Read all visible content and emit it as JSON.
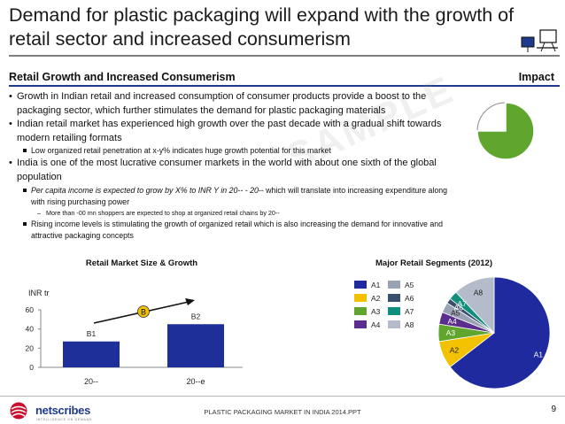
{
  "title": "Demand for plastic packaging will expand with the growth of retail sector and increased consumerism",
  "section": {
    "heading": "Retail Growth and Increased Consumerism",
    "impact_label": "Impact"
  },
  "impact_fraction": 0.75,
  "bullets": {
    "p1": "Growth in Indian retail and increased consumption of consumer products provide a boost to the packaging sector, which further stimulates the demand for plastic packaging materials",
    "p2": "Indian retail market has experienced high growth over the past decade with a gradual shift towards modern retailing formats",
    "p2_s1": "Low organized retail penetration at x-y% indicates huge growth potential for this market",
    "p3": "India is one of the most lucrative consumer markets in the world with about one sixth of the global population",
    "p3_s1_italic": "Per capita income is expected to grow by X% to INR Y in 20-- - 20--",
    "p3_s1_rest": " which will translate into increasing expenditure along with rising purchasing power",
    "p3_s1_sub": "More than -00 mn shoppers are expected to shop at organized retail chains by 20--",
    "p3_s2": "Rising income levels is stimulating the growth of organized retail which is also increasing the demand for innovative and attractive packaging concepts"
  },
  "watermark": "SAMPLE",
  "chart_data": [
    {
      "type": "bar",
      "title": "Retail Market Size & Growth",
      "ylabel": "INR tr",
      "categories": [
        "20--",
        "20--e"
      ],
      "series": [
        {
          "name": "Retail Market Size",
          "values": [
            27,
            45
          ]
        }
      ],
      "data_labels": [
        "B1",
        "B2"
      ],
      "growth_label": "B",
      "ylim": [
        0,
        60
      ],
      "yticks": [
        "0",
        "20",
        "40",
        "60"
      ],
      "grid": false,
      "bar_color": "#1f2f9a"
    },
    {
      "type": "pie",
      "title": "Major Retail Segments (2012)",
      "legend": [
        {
          "label": "A1",
          "color": "#1e2a9e"
        },
        {
          "label": "A5",
          "color": "#9aa3b4"
        },
        {
          "label": "A2",
          "color": "#f2c200"
        },
        {
          "label": "A6",
          "color": "#3b4f6e"
        },
        {
          "label": "A3",
          "color": "#5fa52e"
        },
        {
          "label": "A7",
          "color": "#0f8f7c"
        },
        {
          "label": "A4",
          "color": "#5a2d8e"
        },
        {
          "label": "A8",
          "color": "#b4bccb"
        }
      ],
      "slices": [
        {
          "label": "A1",
          "value": 0.645,
          "color": "#1e2a9e"
        },
        {
          "label": "A2",
          "value": 0.08,
          "color": "#f2c200"
        },
        {
          "label": "A3",
          "value": 0.05,
          "color": "#5fa52e"
        },
        {
          "label": "A4",
          "value": 0.035,
          "color": "#5a2d8e"
        },
        {
          "label": "A5",
          "value": 0.03,
          "color": "#9aa3b4"
        },
        {
          "label": "A6",
          "value": 0.015,
          "color": "#3b4f6e"
        },
        {
          "label": "A7",
          "value": 0.025,
          "color": "#0f8f7c"
        },
        {
          "label": "A8",
          "value": 0.12,
          "color": "#b4bccb"
        }
      ],
      "legend_placement": "left"
    }
  ],
  "footer": {
    "doc_title": "PLASTIC PACKAGING MARKET IN INDIA 2014.PPT",
    "page_number": "9",
    "logo_text": "netscribes",
    "logo_sub": "INTELLIGENCE ON DEMAND"
  },
  "colors": {
    "title_rule": "#7f7f7f",
    "header_rule": "#1f3a8a",
    "impact_fill": "#5fa52e"
  }
}
